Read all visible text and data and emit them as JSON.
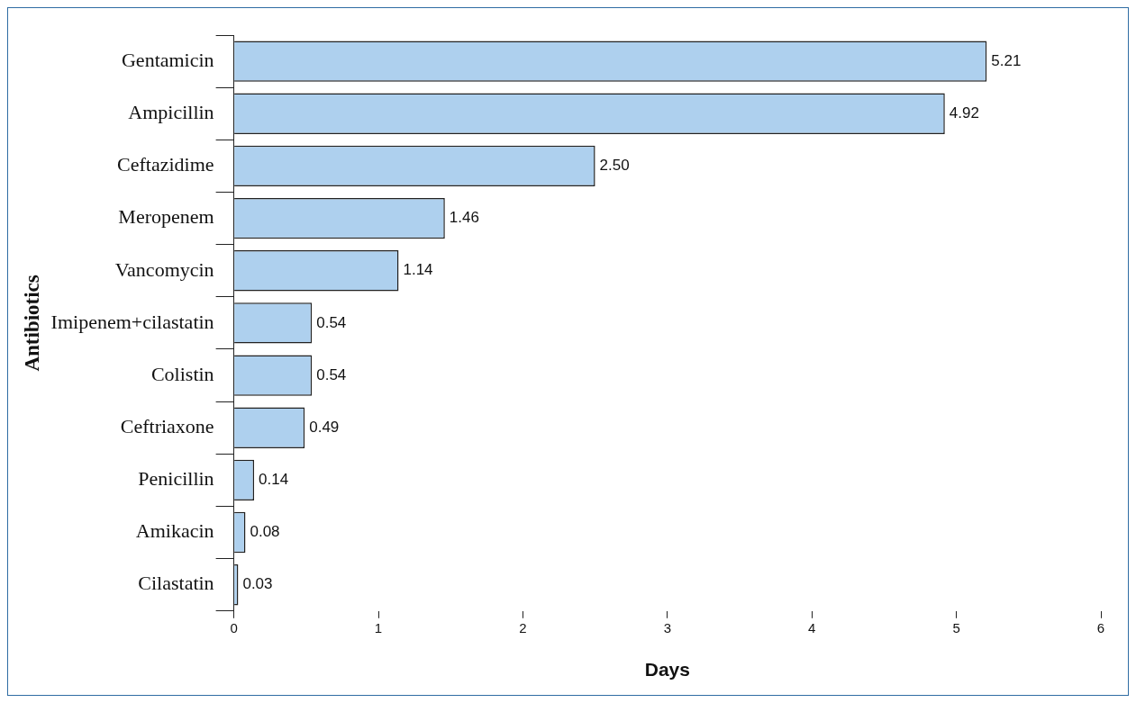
{
  "chart_data": {
    "type": "bar",
    "orientation": "horizontal",
    "xlabel": "Days",
    "ylabel": "Antibiotics",
    "categories": [
      "Gentamicin",
      "Ampicillin",
      "Ceftazidime",
      "Meropenem",
      "Vancomycin",
      "Imipenem+cilastatin",
      "Colistin",
      "Ceftriaxone",
      "Penicillin",
      "Amikacin",
      "Cilastatin"
    ],
    "values": [
      5.21,
      4.92,
      2.5,
      1.46,
      1.14,
      0.54,
      0.54,
      0.49,
      0.14,
      0.08,
      0.03
    ],
    "value_labels": [
      "5.21",
      "4.92",
      "2.50",
      "1.46",
      "1.14",
      "0.54",
      "0.54",
      "0.49",
      "0.14",
      "0.08",
      "0.03"
    ],
    "color": "#aed0ee",
    "xlim": [
      0,
      6
    ],
    "xticks": [
      0,
      1,
      2,
      3,
      4,
      5,
      6
    ],
    "grid": false,
    "legend": false
  }
}
